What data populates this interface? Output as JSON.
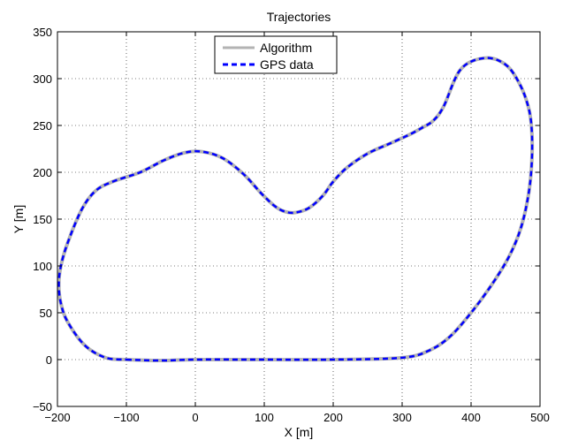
{
  "chart_data": {
    "type": "line",
    "title": "Trajectories",
    "xlabel": "X [m]",
    "ylabel": "Y [m]",
    "xlim": [
      -200,
      500
    ],
    "ylim": [
      -50,
      350
    ],
    "xticks": [
      "−200",
      "−100",
      "0",
      "100",
      "200",
      "300",
      "400",
      "500"
    ],
    "yticks": [
      "−50",
      "0",
      "50",
      "100",
      "150",
      "200",
      "250",
      "300",
      "350"
    ],
    "grid": true,
    "legend_position": "top-center",
    "series": [
      {
        "name": "Algorithm",
        "color": "#b3b3b3",
        "style": "solid",
        "x": [
          -100,
          -50,
          0,
          100,
          200,
          300,
          340,
          370,
          400,
          430,
          455,
          472,
          483,
          488,
          488,
          483,
          470,
          450,
          420,
          385,
          360,
          345,
          330,
          310,
          280,
          250,
          220,
          200,
          185,
          165,
          145,
          130,
          115,
          95,
          70,
          40,
          10,
          -15,
          -45,
          -80,
          -120,
          -145,
          -165,
          -185,
          -195,
          -198,
          -195,
          -185,
          -160,
          -130,
          -100
        ],
        "y": [
          0,
          -1,
          0,
          0,
          0,
          2,
          10,
          25,
          50,
          80,
          110,
          140,
          175,
          210,
          245,
          270,
          295,
          315,
          322,
          310,
          270,
          255,
          248,
          240,
          230,
          220,
          205,
          190,
          175,
          162,
          157,
          158,
          164,
          178,
          198,
          215,
          222,
          221,
          213,
          200,
          190,
          180,
          160,
          125,
          100,
          80,
          60,
          40,
          15,
          2,
          0
        ]
      },
      {
        "name": "GPS data",
        "color": "#0000ff",
        "style": "dashed",
        "x": [
          -100,
          -50,
          0,
          100,
          200,
          300,
          340,
          370,
          400,
          430,
          455,
          472,
          483,
          488,
          488,
          483,
          470,
          450,
          420,
          385,
          360,
          345,
          330,
          310,
          280,
          250,
          220,
          200,
          185,
          165,
          145,
          130,
          115,
          95,
          70,
          40,
          10,
          -15,
          -45,
          -80,
          -120,
          -145,
          -165,
          -185,
          -195,
          -198,
          -195,
          -185,
          -160,
          -130,
          -100
        ],
        "y": [
          0,
          -1,
          0,
          0,
          0,
          2,
          10,
          25,
          50,
          80,
          110,
          140,
          175,
          210,
          245,
          270,
          295,
          315,
          322,
          310,
          270,
          255,
          248,
          240,
          230,
          220,
          205,
          190,
          175,
          162,
          157,
          158,
          164,
          178,
          198,
          215,
          222,
          221,
          213,
          200,
          190,
          180,
          160,
          125,
          100,
          80,
          60,
          40,
          15,
          2,
          0
        ]
      }
    ]
  }
}
